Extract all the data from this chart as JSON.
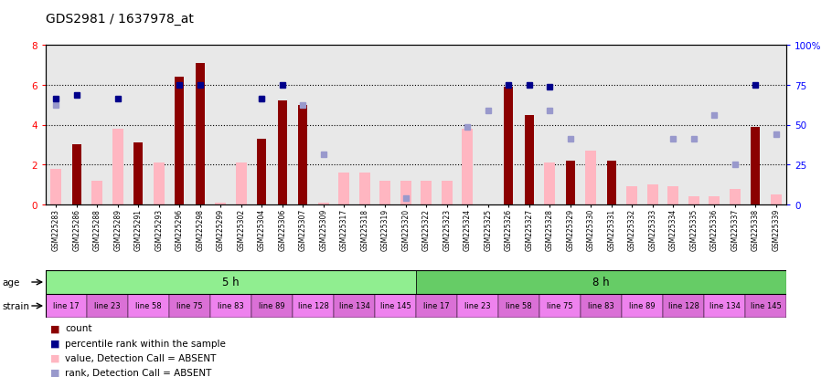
{
  "title": "GDS2981 / 1637978_at",
  "samples": [
    "GSM225283",
    "GSM225286",
    "GSM225288",
    "GSM225289",
    "GSM225291",
    "GSM225293",
    "GSM225296",
    "GSM225298",
    "GSM225299",
    "GSM225302",
    "GSM225304",
    "GSM225306",
    "GSM225307",
    "GSM225309",
    "GSM225317",
    "GSM225318",
    "GSM225319",
    "GSM225320",
    "GSM225322",
    "GSM225323",
    "GSM225324",
    "GSM225325",
    "GSM225326",
    "GSM225327",
    "GSM225328",
    "GSM225329",
    "GSM225330",
    "GSM225331",
    "GSM225332",
    "GSM225333",
    "GSM225334",
    "GSM225335",
    "GSM225336",
    "GSM225337",
    "GSM225338",
    "GSM225339"
  ],
  "count": [
    null,
    3.0,
    null,
    null,
    3.1,
    null,
    6.4,
    7.1,
    null,
    null,
    3.3,
    5.2,
    5.0,
    null,
    null,
    null,
    null,
    null,
    null,
    null,
    null,
    null,
    5.9,
    4.5,
    null,
    2.2,
    null,
    2.2,
    null,
    null,
    null,
    null,
    null,
    null,
    3.9,
    null
  ],
  "rank": [
    5.3,
    5.5,
    null,
    5.3,
    null,
    null,
    6.0,
    6.0,
    null,
    null,
    5.3,
    6.0,
    null,
    null,
    null,
    null,
    null,
    null,
    null,
    null,
    null,
    null,
    6.0,
    6.0,
    5.9,
    null,
    null,
    null,
    null,
    null,
    null,
    null,
    null,
    null,
    6.0,
    null
  ],
  "absent_value": [
    1.8,
    null,
    1.2,
    3.8,
    null,
    2.1,
    null,
    null,
    0.1,
    2.1,
    null,
    null,
    null,
    0.1,
    1.6,
    1.6,
    1.2,
    1.2,
    1.2,
    1.2,
    3.8,
    null,
    null,
    null,
    2.1,
    null,
    2.7,
    null,
    0.9,
    1.0,
    0.9,
    0.4,
    0.4,
    0.8,
    null,
    0.5
  ],
  "absent_rank": [
    5.0,
    null,
    null,
    null,
    null,
    null,
    null,
    null,
    null,
    null,
    5.3,
    null,
    5.0,
    2.5,
    null,
    null,
    null,
    0.3,
    null,
    null,
    3.9,
    4.7,
    null,
    null,
    4.7,
    3.3,
    null,
    null,
    null,
    null,
    3.3,
    3.3,
    4.5,
    2.0,
    null,
    3.5
  ],
  "age_groups": [
    {
      "label": "5 h",
      "start": 0,
      "end": 18,
      "color": "#90ee90"
    },
    {
      "label": "8 h",
      "start": 18,
      "end": 36,
      "color": "#66cc66"
    }
  ],
  "strain_groups": [
    {
      "label": "line 17",
      "start": 0,
      "end": 2,
      "color": "#ee82ee"
    },
    {
      "label": "line 23",
      "start": 2,
      "end": 4,
      "color": "#da70d6"
    },
    {
      "label": "line 58",
      "start": 4,
      "end": 6,
      "color": "#ee82ee"
    },
    {
      "label": "line 75",
      "start": 6,
      "end": 8,
      "color": "#da70d6"
    },
    {
      "label": "line 83",
      "start": 8,
      "end": 10,
      "color": "#ee82ee"
    },
    {
      "label": "line 89",
      "start": 10,
      "end": 12,
      "color": "#da70d6"
    },
    {
      "label": "line 128",
      "start": 12,
      "end": 14,
      "color": "#ee82ee"
    },
    {
      "label": "line 134",
      "start": 14,
      "end": 16,
      "color": "#da70d6"
    },
    {
      "label": "line 145",
      "start": 16,
      "end": 18,
      "color": "#ee82ee"
    },
    {
      "label": "line 17",
      "start": 18,
      "end": 20,
      "color": "#da70d6"
    },
    {
      "label": "line 23",
      "start": 20,
      "end": 22,
      "color": "#ee82ee"
    },
    {
      "label": "line 58",
      "start": 22,
      "end": 24,
      "color": "#da70d6"
    },
    {
      "label": "line 75",
      "start": 24,
      "end": 26,
      "color": "#ee82ee"
    },
    {
      "label": "line 83",
      "start": 26,
      "end": 28,
      "color": "#da70d6"
    },
    {
      "label": "line 89",
      "start": 28,
      "end": 30,
      "color": "#ee82ee"
    },
    {
      "label": "line 128",
      "start": 30,
      "end": 32,
      "color": "#da70d6"
    },
    {
      "label": "line 134",
      "start": 32,
      "end": 34,
      "color": "#ee82ee"
    },
    {
      "label": "line 145",
      "start": 34,
      "end": 36,
      "color": "#da70d6"
    }
  ],
  "ylim_left": [
    0,
    8
  ],
  "ylim_right": [
    0,
    100
  ],
  "yticks_left": [
    0,
    2,
    4,
    6,
    8
  ],
  "yticks_right": [
    0,
    25,
    50,
    75,
    100
  ],
  "bar_color_count": "#8B0000",
  "bar_color_absent_value": "#ffb6c1",
  "marker_color_rank": "#00008B",
  "marker_color_absent_rank": "#9999cc",
  "background_color": "#ffffff",
  "plot_bg_color": "#e8e8e8",
  "title_fontsize": 10
}
